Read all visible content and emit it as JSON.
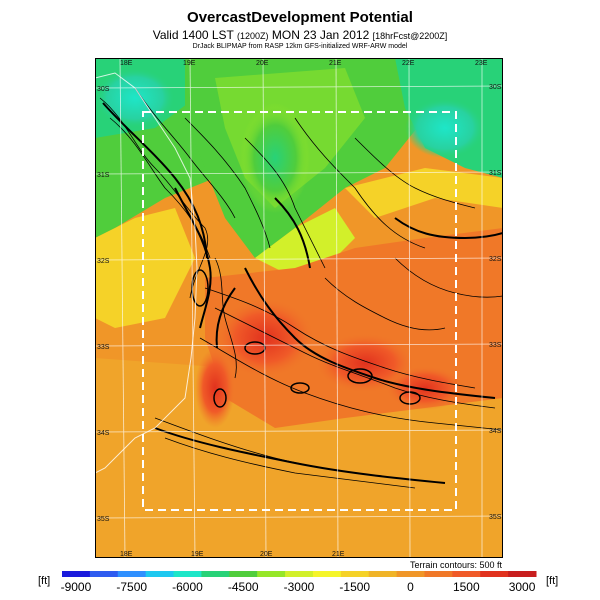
{
  "header": {
    "title": "OvercastDevelopment Potential",
    "valid_main": "Valid 1400 LST",
    "valid_paren": "(1200Z)",
    "valid_date": "MON 23 Jan 2012",
    "valid_bracket": "[18hrFcst@2200Z]",
    "credit": "DrJack BLIPMAP from RASP 12km GFS-initialized WRF-ARW model"
  },
  "map": {
    "lon_labels_top": [
      "18E",
      "19E",
      "20E",
      "21E",
      "22E",
      "23E"
    ],
    "lon_labels_bottom": [
      "18E",
      "19E",
      "20E",
      "21E"
    ],
    "lat_labels_left": [
      "30S",
      "31S",
      "32S",
      "33S",
      "34S",
      "35S"
    ],
    "lat_labels_right": [
      "30S",
      "31S",
      "32S",
      "33S",
      "34S",
      "35S"
    ],
    "domain_box": "dashed white",
    "contour_note": "Terrain contours: 500 ft"
  },
  "colorbar": {
    "unit_left": "[ft]",
    "unit_right": "[ft]",
    "tick_labels": [
      "-9000",
      "-7500",
      "-6000",
      "-4500",
      "-3000",
      "-1500",
      "0",
      "1500",
      "3000"
    ],
    "colors": [
      "#1a1adc",
      "#2f5cf0",
      "#2f90ff",
      "#1ec8f0",
      "#1ee6c8",
      "#28d278",
      "#50cd3c",
      "#96e628",
      "#d2f02a",
      "#f5f52a",
      "#f5d228",
      "#f0b428",
      "#f09628",
      "#f07828",
      "#f05a28",
      "#e1321e",
      "#c81e1e"
    ]
  }
}
